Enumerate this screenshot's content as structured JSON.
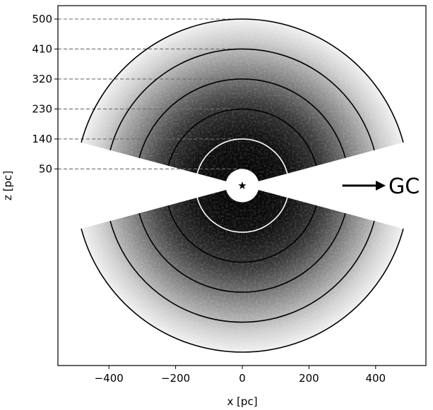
{
  "chart_data": {
    "type": "heatmap",
    "title": "",
    "xlabel": "x [pc]",
    "ylabel": "z [pc]",
    "xlim": [
      -550,
      550
    ],
    "ylim": [
      -550,
      550
    ],
    "x_ticks": [
      {
        "value": -400,
        "label": "−400"
      },
      {
        "value": -200,
        "label": "−200"
      },
      {
        "value": 0,
        "label": "0"
      },
      {
        "value": 200,
        "label": "200"
      },
      {
        "value": 400,
        "label": "400"
      }
    ],
    "y_ticks": [
      {
        "value": 500,
        "label": "500"
      },
      {
        "value": 410,
        "label": "410"
      },
      {
        "value": 320,
        "label": "320"
      },
      {
        "value": 230,
        "label": "230"
      },
      {
        "value": 140,
        "label": "140"
      },
      {
        "value": 50,
        "label": "50"
      }
    ],
    "shell_radii_pc": [
      50,
      140,
      230,
      320,
      410,
      500
    ],
    "wedge_max_radius_pc": 500,
    "wedge_elevation_deg": [
      15,
      90
    ],
    "grid": false,
    "marker": {
      "symbol": "★",
      "x": 0,
      "z": 0
    },
    "annotation": {
      "text": "GC",
      "arrow_from": [
        300,
        0
      ],
      "arrow_to": [
        430,
        0
      ]
    }
  }
}
